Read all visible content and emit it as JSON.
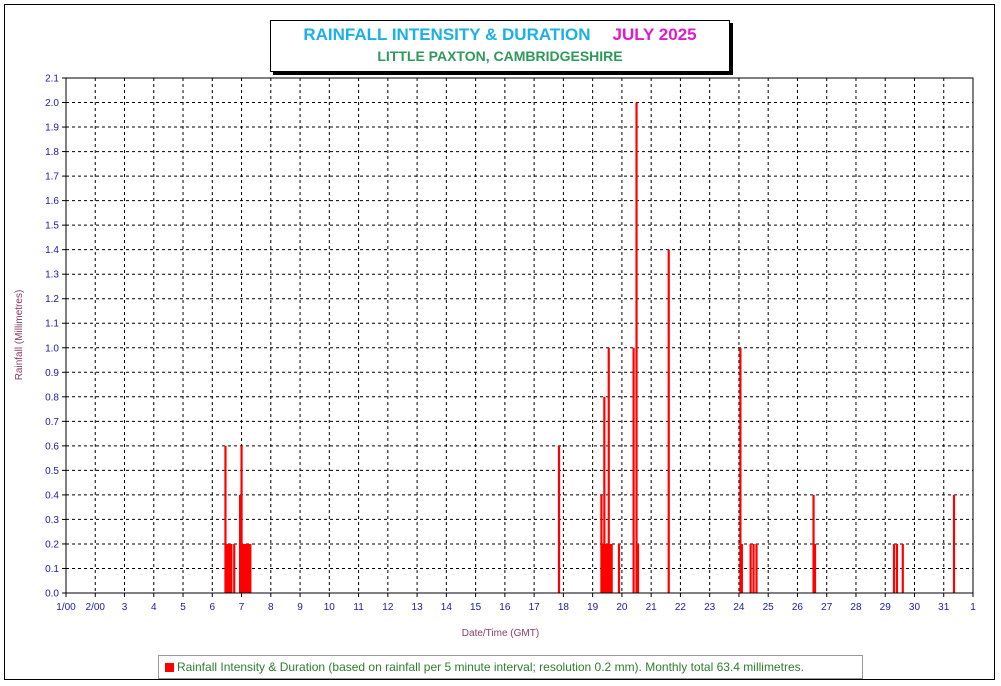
{
  "title": {
    "main": "RAINFALL INTENSITY & DURATION",
    "month": "JULY 2025",
    "location": "LITTLE PAXTON, CAMBRIDGESHIRE"
  },
  "legend": {
    "text": "Rainfall Intensity & Duration (based on rainfall per 5 minute interval; resolution 0.2 mm). Monthly total 63.4 millimetres."
  },
  "chart_data": {
    "type": "bar",
    "title": "RAINFALL INTENSITY & DURATION   JULY 2025",
    "subtitle": "LITTLE PAXTON, CAMBRIDGESHIRE",
    "xlabel": "Date/Time (GMT)",
    "ylabel": "Rainfall (Millimetres)",
    "ylim": [
      0,
      2.1
    ],
    "y_ticks": [
      "0.0",
      "0.1",
      "0.2",
      "0.3",
      "0.4",
      "0.5",
      "0.6",
      "0.7",
      "0.8",
      "0.9",
      "1.0",
      "1.1",
      "1.2",
      "1.3",
      "1.4",
      "1.5",
      "1.6",
      "1.7",
      "1.8",
      "1.9",
      "2.0",
      "2.1"
    ],
    "x_ticks": [
      "1/00",
      "2/00",
      "3",
      "4",
      "5",
      "6",
      "7",
      "8",
      "9",
      "10",
      "11",
      "12",
      "13",
      "14",
      "15",
      "16",
      "17",
      "18",
      "19",
      "20",
      "21",
      "22",
      "23",
      "24",
      "25",
      "26",
      "27",
      "28",
      "29",
      "30",
      "31",
      "1"
    ],
    "grid": true,
    "series": [
      {
        "color": "#ff0000",
        "x": [
          6.45,
          6.5,
          6.55,
          6.6,
          6.65,
          6.75,
          6.95,
          7.0,
          7.02,
          7.05,
          7.1,
          7.15,
          7.2,
          7.25,
          7.3,
          17.85,
          19.3,
          19.35,
          19.4,
          19.45,
          19.5,
          19.55,
          19.6,
          19.65,
          19.9,
          20.4,
          20.5,
          20.55,
          21.6,
          24.05,
          24.1,
          24.4,
          24.5,
          24.6,
          26.55,
          26.6,
          29.3,
          29.4,
          29.6,
          31.35
        ],
        "values": [
          0.6,
          0.2,
          0.2,
          0.2,
          0.2,
          0.2,
          0.4,
          0.6,
          0.2,
          0.2,
          0.2,
          0.2,
          0.2,
          0.2,
          0.2,
          0.6,
          0.4,
          0.2,
          0.8,
          0.2,
          0.2,
          1.0,
          0.2,
          0.2,
          0.2,
          1.0,
          2.0,
          0.2,
          1.4,
          1.0,
          0.2,
          0.2,
          0.2,
          0.2,
          0.4,
          0.2,
          0.2,
          0.2,
          0.2,
          0.4
        ]
      }
    ]
  }
}
